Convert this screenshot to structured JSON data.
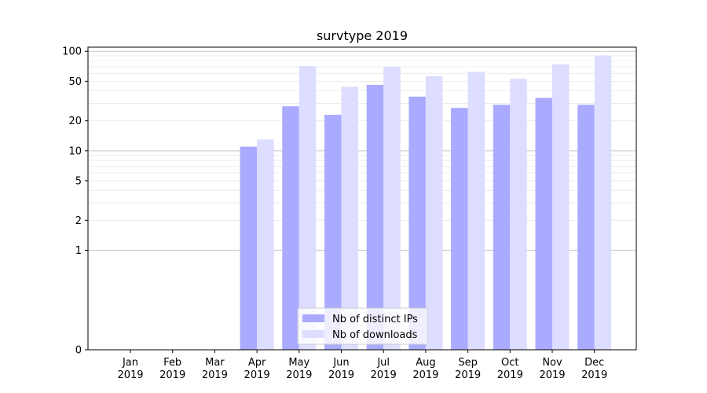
{
  "chart_data": {
    "type": "bar",
    "title": "survtype 2019",
    "xlabel": "",
    "ylabel": "",
    "yscale": "symlog",
    "ylim": [
      0,
      110
    ],
    "yticks": [
      0,
      1,
      2,
      5,
      10,
      20,
      50,
      100
    ],
    "categories": [
      "Jan\n2019",
      "Feb\n2019",
      "Mar\n2019",
      "Apr\n2019",
      "May\n2019",
      "Jun\n2019",
      "Jul\n2019",
      "Aug\n2019",
      "Sep\n2019",
      "Oct\n2019",
      "Nov\n2019",
      "Dec\n2019"
    ],
    "series": [
      {
        "name": "Nb of distinct IPs",
        "color": "#aaaaff",
        "values": [
          0,
          0,
          0,
          11,
          28,
          23,
          46,
          35,
          27,
          29,
          34,
          29
        ]
      },
      {
        "name": "Nb of downloads",
        "color": "#ddddff",
        "values": [
          0,
          0,
          0,
          13,
          71,
          44,
          70,
          56,
          62,
          53,
          74,
          91
        ]
      }
    ],
    "legend_position": "bottom-center",
    "grid": true
  }
}
